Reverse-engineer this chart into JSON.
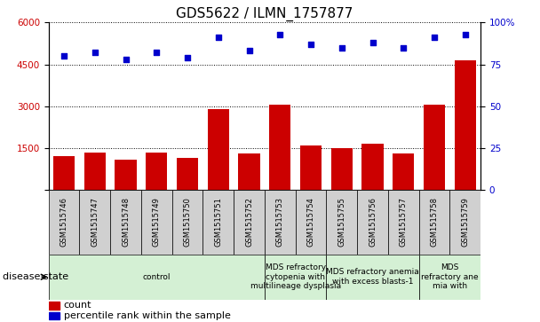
{
  "title": "GDS5622 / ILMN_1757877",
  "samples": [
    "GSM1515746",
    "GSM1515747",
    "GSM1515748",
    "GSM1515749",
    "GSM1515750",
    "GSM1515751",
    "GSM1515752",
    "GSM1515753",
    "GSM1515754",
    "GSM1515755",
    "GSM1515756",
    "GSM1515757",
    "GSM1515758",
    "GSM1515759"
  ],
  "counts": [
    1200,
    1350,
    1100,
    1350,
    1150,
    2900,
    1300,
    3050,
    1600,
    1500,
    1650,
    1300,
    3050,
    4650
  ],
  "percentiles": [
    80,
    82,
    78,
    82,
    79,
    91,
    83,
    93,
    87,
    85,
    88,
    85,
    91,
    93
  ],
  "ylim_left": [
    0,
    6000
  ],
  "ylim_right": [
    0,
    100
  ],
  "yticks_left": [
    0,
    1500,
    3000,
    4500,
    6000
  ],
  "yticks_right": [
    0,
    25,
    50,
    75,
    100
  ],
  "bar_color": "#CC0000",
  "dot_color": "#0000CC",
  "background_color": "#ffffff",
  "disease_groups": [
    {
      "label": "control",
      "start": 0,
      "end": 7,
      "color": "#d4f0d4"
    },
    {
      "label": "MDS refractory\ncytopenia with\nmultilineage dysplasia",
      "start": 7,
      "end": 9,
      "color": "#d4f0d4"
    },
    {
      "label": "MDS refractory anemia\nwith excess blasts-1",
      "start": 9,
      "end": 12,
      "color": "#d4f0d4"
    },
    {
      "label": "MDS\nrefractory ane\nmia with",
      "start": 12,
      "end": 14,
      "color": "#d4f0d4"
    }
  ],
  "xlabel_disease": "disease state",
  "legend_count": "count",
  "legend_percentile": "percentile rank within the sample",
  "title_fontsize": 11,
  "tick_fontsize": 7.5,
  "sample_fontsize": 6,
  "disease_fontsize": 6.5,
  "legend_fontsize": 8
}
